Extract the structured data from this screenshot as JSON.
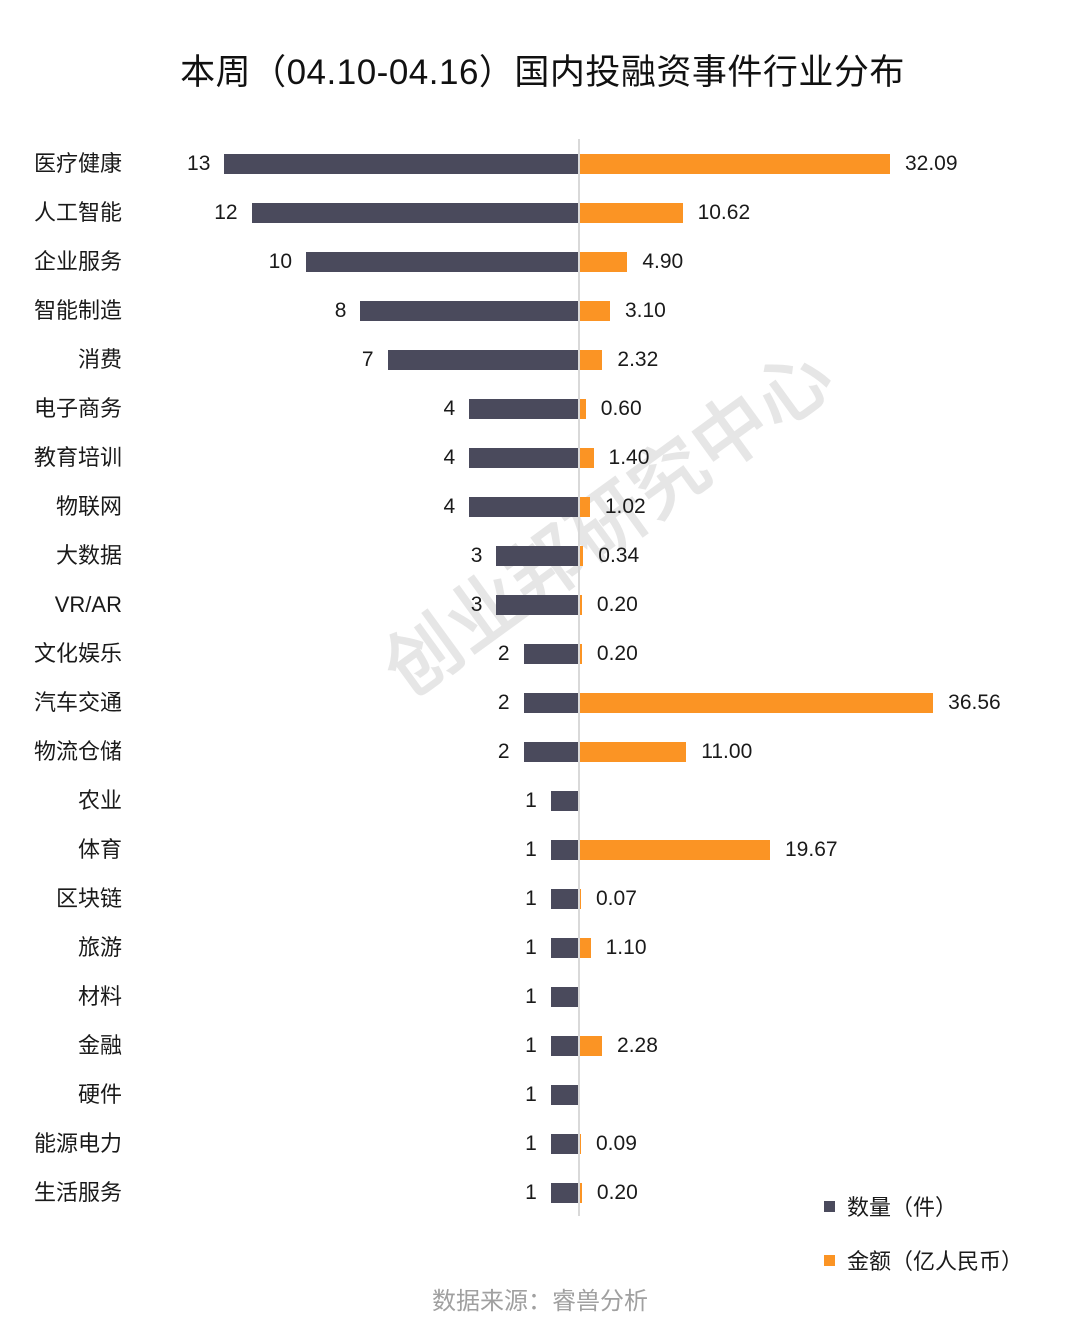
{
  "title": "本周（04.10-04.16）国内投融资事件行业分布",
  "watermark": "创业邦研究中心",
  "source": "数据来源：睿兽分析",
  "colors": {
    "count": "#4a4a5c",
    "amount": "#fb9424",
    "axis": "#d9d9d9"
  },
  "legend": {
    "items": [
      {
        "label": "数量（件）",
        "color": "#4a4a5c"
      },
      {
        "label": "金额（亿人民币）",
        "color": "#fb9424"
      }
    ]
  },
  "chart_data": {
    "type": "bar",
    "orientation": "horizontal-butterfly",
    "title": "本周（04.10-04.16）国内投融资事件行业分布",
    "xlabel": "",
    "ylabel": "",
    "grid": false,
    "legend_position": "bottom-right",
    "categories": [
      "医疗健康",
      "人工智能",
      "企业服务",
      "智能制造",
      "消费",
      "电子商务",
      "教育培训",
      "物联网",
      "大数据",
      "VR/AR",
      "文化娱乐",
      "汽车交通",
      "物流仓储",
      "农业",
      "体育",
      "区块链",
      "旅游",
      "材料",
      "金融",
      "硬件",
      "能源电力",
      "生活服务"
    ],
    "series": [
      {
        "name": "数量（件）",
        "direction": "left",
        "values": [
          13,
          12,
          10,
          8,
          7,
          4,
          4,
          4,
          3,
          3,
          2,
          2,
          2,
          1,
          1,
          1,
          1,
          1,
          1,
          1,
          1,
          1
        ],
        "labels": [
          "13",
          "12",
          "10",
          "8",
          "7",
          "4",
          "4",
          "4",
          "3",
          "3",
          "2",
          "2",
          "2",
          "1",
          "1",
          "1",
          "1",
          "1",
          "1",
          "1",
          "1",
          "1"
        ]
      },
      {
        "name": "金额（亿人民币）",
        "direction": "right",
        "values": [
          32.09,
          10.62,
          4.9,
          3.1,
          2.32,
          0.6,
          1.4,
          1.02,
          0.34,
          0.2,
          0.2,
          36.56,
          11.0,
          null,
          19.67,
          0.07,
          1.1,
          null,
          2.28,
          null,
          0.09,
          0.2
        ],
        "labels": [
          "32.09",
          "10.62",
          "4.90",
          "3.10",
          "2.32",
          "0.60",
          "1.40",
          "1.02",
          "0.34",
          "0.20",
          "0.20",
          "36.56",
          "11.00",
          "",
          "19.67",
          "0.07",
          "1.10",
          "",
          "2.28",
          "",
          "0.09",
          "0.20"
        ]
      }
    ]
  }
}
